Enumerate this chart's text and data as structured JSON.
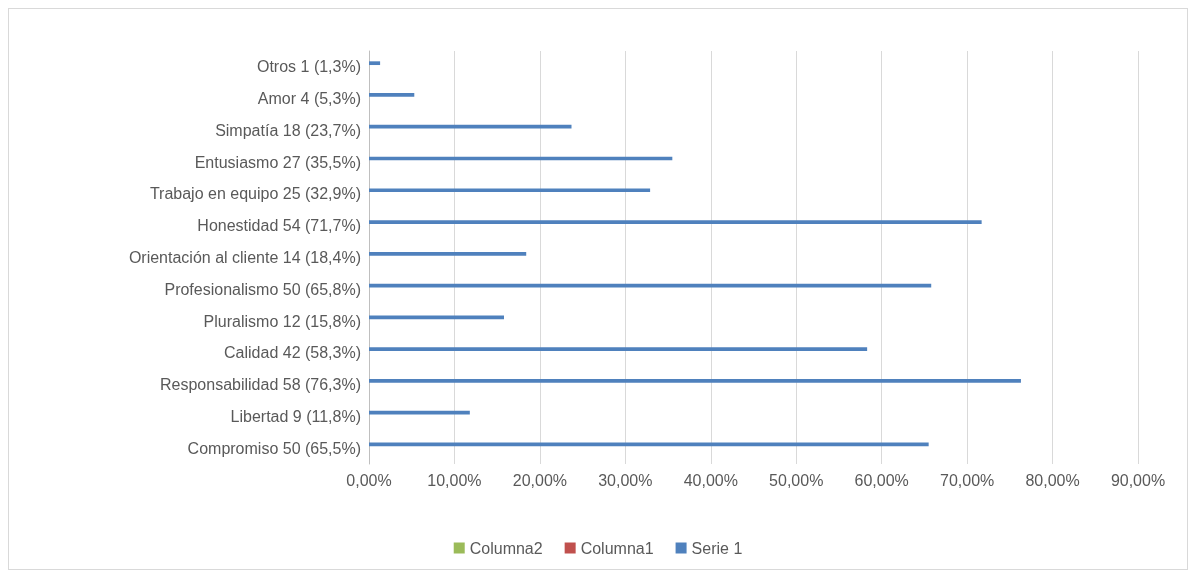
{
  "chart_data": {
    "type": "bar",
    "orientation": "horizontal",
    "categories": [
      "Otros 1 (1,3%)",
      "Amor 4 (5,3%)",
      "Simpatía 18 (23,7%)",
      "Entusiasmo 27 (35,5%)",
      "Trabajo en equipo 25 (32,9%)",
      "Honestidad 54 (71,7%)",
      "Orientación al cliente 14 (18,4%)",
      "Profesionalismo 50 (65,8%)",
      "Pluralismo 12 (15,8%)",
      "Calidad 42 (58,3%)",
      "Responsabilidad 58 (76,3%)",
      "Libertad 9 (11,8%)",
      "Compromiso 50 (65,5%)"
    ],
    "series": [
      {
        "name": "Columna2",
        "color": "#9bbb59",
        "values": [
          null,
          null,
          null,
          null,
          null,
          null,
          null,
          null,
          null,
          null,
          null,
          null,
          null
        ]
      },
      {
        "name": "Columna1",
        "color": "#c0504d",
        "values": [
          null,
          null,
          null,
          null,
          null,
          null,
          null,
          null,
          null,
          null,
          null,
          null,
          null
        ]
      },
      {
        "name": "Serie 1",
        "color": "#4f81bd",
        "values": [
          1.3,
          5.3,
          23.7,
          35.5,
          32.9,
          71.7,
          18.4,
          65.8,
          15.8,
          58.3,
          76.3,
          11.8,
          65.5
        ]
      }
    ],
    "xlim": [
      0,
      90
    ],
    "xticks": [
      {
        "value": 0,
        "label": "0,00%"
      },
      {
        "value": 10,
        "label": "10,00%"
      },
      {
        "value": 20,
        "label": "20,00%"
      },
      {
        "value": 30,
        "label": "30,00%"
      },
      {
        "value": 40,
        "label": "40,00%"
      },
      {
        "value": 50,
        "label": "50,00%"
      },
      {
        "value": 60,
        "label": "60,00%"
      },
      {
        "value": 70,
        "label": "70,00%"
      },
      {
        "value": 80,
        "label": "80,00%"
      },
      {
        "value": 90,
        "label": "90,00%"
      }
    ],
    "grid": "x",
    "legend": "bottom"
  }
}
